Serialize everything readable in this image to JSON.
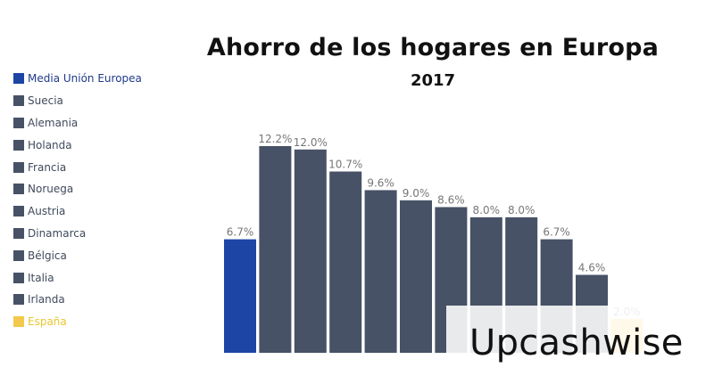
{
  "chart_data": {
    "type": "bar",
    "title": "Ahorro de los hogares en Europa",
    "subtitle": "2017",
    "categories": [
      "Media Unión Europea",
      "Suecia",
      "Alemania",
      "Holanda",
      "Francia",
      "Noruega",
      "Austria",
      "Dinamarca",
      "Bélgica",
      "Italia",
      "Irlanda",
      "España"
    ],
    "values": [
      6.7,
      12.2,
      12.0,
      10.7,
      9.6,
      9.0,
      8.6,
      8.0,
      8.0,
      6.7,
      4.6,
      2.0
    ],
    "value_labels": [
      "6.7%",
      "12.2%",
      "12.0%",
      "10.7%",
      "9.6%",
      "9.0%",
      "8.6%",
      "8.0%",
      "8.0%",
      "6.7%",
      "4.6%",
      "2.0%"
    ],
    "colors": [
      "#1c45a6",
      "#475266",
      "#475266",
      "#475266",
      "#475266",
      "#475266",
      "#475266",
      "#475266",
      "#475266",
      "#475266",
      "#475266",
      "#f2c94c"
    ],
    "ylim": [
      0,
      12.2
    ],
    "grid": false,
    "legend_position": "left"
  },
  "watermark": "Upcashwise"
}
